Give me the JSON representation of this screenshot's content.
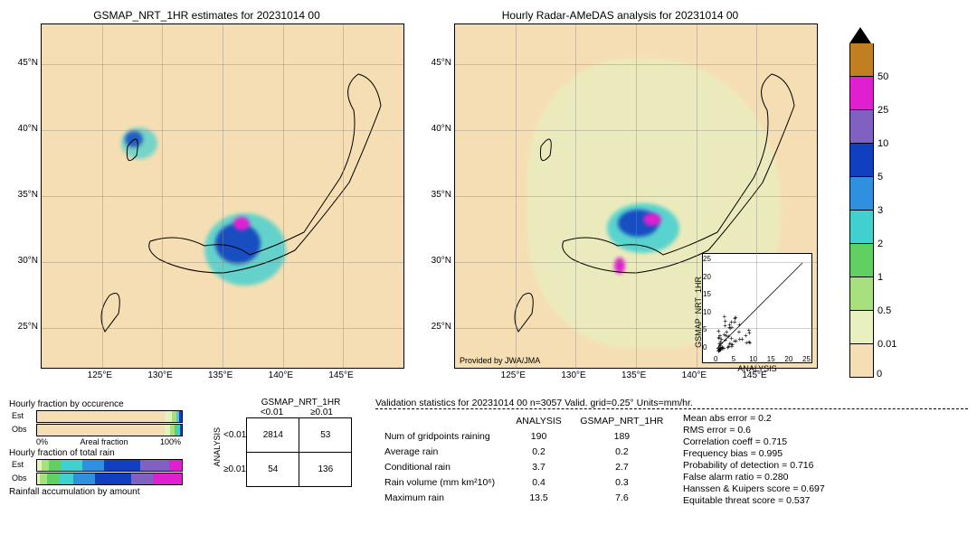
{
  "map_left": {
    "title": "GSMAP_NRT_1HR estimates for 20231014 00",
    "xlim": [
      120,
      150
    ],
    "ylim": [
      22,
      48
    ],
    "xtick_labels": [
      "125°E",
      "130°E",
      "135°E",
      "140°E",
      "145°E"
    ],
    "ytick_labels": [
      "25°N",
      "30°N",
      "35°N",
      "40°N",
      "45°N"
    ],
    "xtick_vals": [
      125,
      130,
      135,
      140,
      145
    ],
    "ytick_vals": [
      25,
      30,
      35,
      40,
      45
    ],
    "background_color": "#f5deb3",
    "grid_color": "#999999"
  },
  "map_right": {
    "title": "Hourly Radar-AMeDAS analysis for 20231014 00",
    "xlim": [
      120,
      150
    ],
    "ylim": [
      22,
      48
    ],
    "xtick_labels": [
      "125°E",
      "130°E",
      "135°E",
      "140°E",
      "145°E"
    ],
    "ytick_labels": [
      "25°N",
      "30°N",
      "35°N",
      "40°N",
      "45°N"
    ],
    "xtick_vals": [
      125,
      130,
      135,
      140,
      145
    ],
    "ytick_vals": [
      25,
      30,
      35,
      40,
      45
    ],
    "attribution": "Provided by JWA/JMA",
    "background_color": "#f5deb3",
    "inset": {
      "xlabel": "ANALYSIS",
      "ylabel": "GSMAP_NRT_1HR",
      "xlim": [
        0,
        25
      ],
      "ylim": [
        0,
        25
      ],
      "ticks": [
        0,
        5,
        10,
        15,
        20,
        25
      ]
    }
  },
  "colorbar": {
    "levels": [
      0,
      0.01,
      0.5,
      1,
      2,
      3,
      5,
      10,
      25,
      50
    ],
    "colors": [
      "#f5deb3",
      "#e8f0c0",
      "#a8e080",
      "#60d060",
      "#40d0d0",
      "#3090e0",
      "#1040c0",
      "#8060c0",
      "#e020d0",
      "#c08020"
    ],
    "over_color": "#000000"
  },
  "fractions": {
    "occurrence_title": "Hourly fraction by occurence",
    "totalrain_title": "Hourly fraction of total rain",
    "accum_title": "Rainfall accumulation by amount",
    "axis_title": "Areal fraction",
    "axis_min": "0%",
    "axis_max": "100%",
    "rows": [
      "Est",
      "Obs"
    ],
    "occurrence_est": [
      {
        "c": "#f5deb3",
        "w": 88
      },
      {
        "c": "#e8f0c0",
        "w": 5
      },
      {
        "c": "#a8e080",
        "w": 3
      },
      {
        "c": "#40d0d0",
        "w": 2
      },
      {
        "c": "#1040c0",
        "w": 2
      }
    ],
    "occurrence_obs": [
      {
        "c": "#f5deb3",
        "w": 88
      },
      {
        "c": "#e8f0c0",
        "w": 4
      },
      {
        "c": "#a8e080",
        "w": 3
      },
      {
        "c": "#60d060",
        "w": 2
      },
      {
        "c": "#40d0d0",
        "w": 1.5
      },
      {
        "c": "#1040c0",
        "w": 1.5
      }
    ],
    "totalrain_est": [
      {
        "c": "#e8f0c0",
        "w": 3
      },
      {
        "c": "#a8e080",
        "w": 5
      },
      {
        "c": "#60d060",
        "w": 8
      },
      {
        "c": "#40d0d0",
        "w": 15
      },
      {
        "c": "#3090e0",
        "w": 15
      },
      {
        "c": "#1040c0",
        "w": 25
      },
      {
        "c": "#8060c0",
        "w": 20
      },
      {
        "c": "#e020d0",
        "w": 9
      }
    ],
    "totalrain_obs": [
      {
        "c": "#e8f0c0",
        "w": 2
      },
      {
        "c": "#a8e080",
        "w": 5
      },
      {
        "c": "#60d060",
        "w": 8
      },
      {
        "c": "#40d0d0",
        "w": 10
      },
      {
        "c": "#3090e0",
        "w": 15
      },
      {
        "c": "#1040c0",
        "w": 25
      },
      {
        "c": "#8060c0",
        "w": 15
      },
      {
        "c": "#e020d0",
        "w": 20
      }
    ]
  },
  "contingency": {
    "col_header": "GSMAP_NRT_1HR",
    "row_header": "ANALYSIS",
    "col_labels": [
      "<0.01",
      "≥0.01"
    ],
    "row_labels": [
      "<0.01",
      "≥0.01"
    ],
    "cells": [
      [
        2814,
        53
      ],
      [
        54,
        136
      ]
    ]
  },
  "stats_header": "Validation statistics for 20231014 00  n=3057 Valid. grid=0.25°  Units=mm/hr.",
  "stats_table": {
    "col_headers": [
      "",
      "ANALYSIS",
      "GSMAP_NRT_1HR"
    ],
    "rows": [
      [
        "Num of gridpoints raining",
        "190",
        "189"
      ],
      [
        "Average rain",
        "0.2",
        "0.2"
      ],
      [
        "Conditional rain",
        "3.7",
        "2.7"
      ],
      [
        "Rain volume (mm km²10⁶)",
        "0.4",
        "0.3"
      ],
      [
        "Maximum rain",
        "13.5",
        "7.6"
      ]
    ]
  },
  "stats_list": [
    "Mean abs error =    0.2",
    "RMS error =    0.6",
    "Correlation coeff =  0.715",
    "Frequency bias =  0.995",
    "Probability of detection =  0.716",
    "False alarm ratio =  0.280",
    "Hanssen & Kuipers score =  0.697",
    "Equitable threat score =  0.537"
  ]
}
